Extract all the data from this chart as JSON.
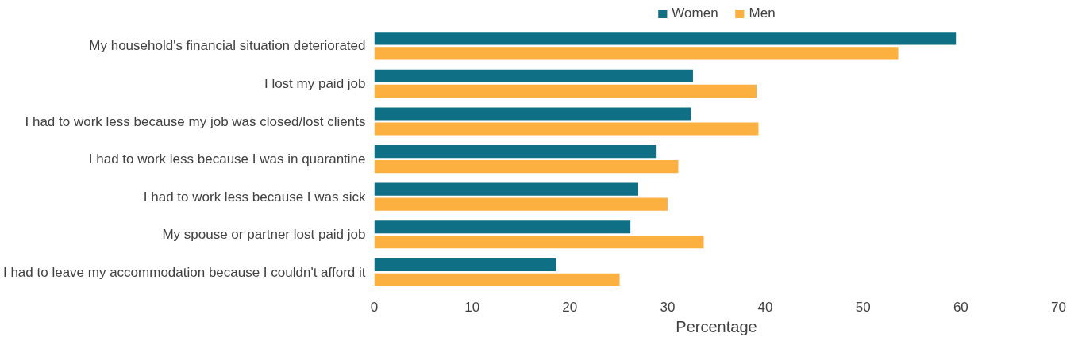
{
  "chart_data": {
    "type": "bar",
    "orientation": "horizontal",
    "xlabel": "Percentage",
    "categories": [
      "My household's financial situation deteriorated",
      "I lost my paid job",
      "I had to work less because my job was closed/lost clients",
      "I had to work less because I was in quarantine",
      "I had to work less because I was sick",
      "My spouse or partner lost paid job",
      "I had to leave my accommodation because I couldn't afford it"
    ],
    "series": [
      {
        "name": "Women",
        "color": "#0f6f84",
        "values": [
          59.5,
          32.6,
          32.4,
          28.8,
          27.0,
          26.2,
          18.6
        ]
      },
      {
        "name": "Men",
        "color": "#fbb040",
        "values": [
          53.6,
          39.1,
          39.3,
          31.1,
          30.0,
          33.7,
          25.1
        ]
      }
    ],
    "xlim": [
      0,
      70
    ],
    "xticks": [
      0,
      10,
      20,
      30,
      40,
      50,
      60,
      70
    ],
    "grid": false,
    "legend": "top"
  }
}
